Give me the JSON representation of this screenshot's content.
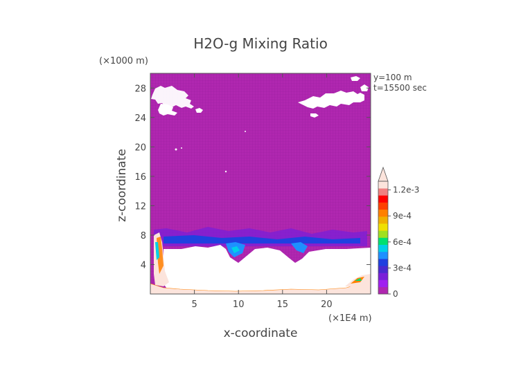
{
  "chart_data": {
    "type": "heatmap",
    "title": "H2O-g Mixing Ratio",
    "xlabel": "x-coordinate",
    "ylabel": "z-coordinate",
    "x_unit": "(×1E4 m)",
    "y_unit": "(×1000 m)",
    "annotations": [
      "y=100 m",
      "t=15500 sec"
    ],
    "xlim": [
      0,
      25
    ],
    "ylim": [
      0,
      30
    ],
    "x_ticks": [
      5,
      10,
      15,
      20
    ],
    "y_ticks": [
      4,
      8,
      12,
      16,
      20,
      24,
      28
    ],
    "colorbar": {
      "min": 0,
      "max": 0.0013,
      "extend": "max",
      "tick_values": [
        0,
        0.0003,
        0.0006,
        0.0009,
        0.0012
      ],
      "tick_labels": [
        "0",
        "3e-4",
        "6e-4",
        "9e-4",
        "1.2e-3"
      ],
      "colors": [
        "#b027b0",
        "#a020f0",
        "#7a1fd8",
        "#4a2ad0",
        "#2040e0",
        "#1e90ff",
        "#00cfe8",
        "#00e070",
        "#a0e020",
        "#f0e000",
        "#f0b000",
        "#ff8000",
        "#ff4000",
        "#ff0000",
        "#f08080",
        "#fce4dc"
      ]
    }
  }
}
